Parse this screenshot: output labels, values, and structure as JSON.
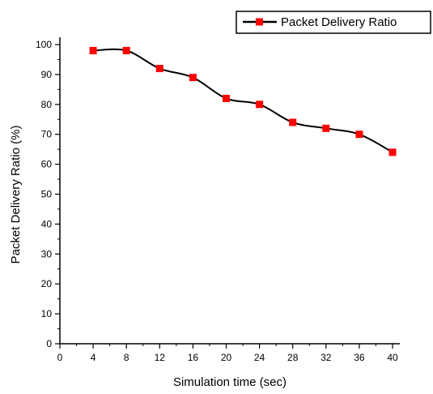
{
  "chart_data": {
    "type": "line",
    "xlabel": "Simulation time (sec)",
    "ylabel": "Packet Delivery Ratio (%)",
    "xlim": [
      0,
      40
    ],
    "ylim": [
      0,
      100
    ],
    "x_ticks": [
      "0",
      "4",
      "8",
      "12",
      "16",
      "20",
      "24",
      "28",
      "32",
      "36",
      "40"
    ],
    "y_ticks": [
      "0",
      "10",
      "20",
      "30",
      "40",
      "50",
      "60",
      "70",
      "80",
      "90",
      "100"
    ],
    "grid": false,
    "legend_position": "top-right",
    "series": [
      {
        "name": "Packet Delivery Ratio",
        "color": "#ff0000",
        "line_color": "#000000",
        "marker": "square",
        "x": [
          4,
          8,
          12,
          16,
          20,
          24,
          28,
          32,
          36,
          40
        ],
        "y": [
          98,
          98,
          92,
          89,
          82,
          80,
          74,
          72,
          70,
          64
        ]
      }
    ]
  }
}
